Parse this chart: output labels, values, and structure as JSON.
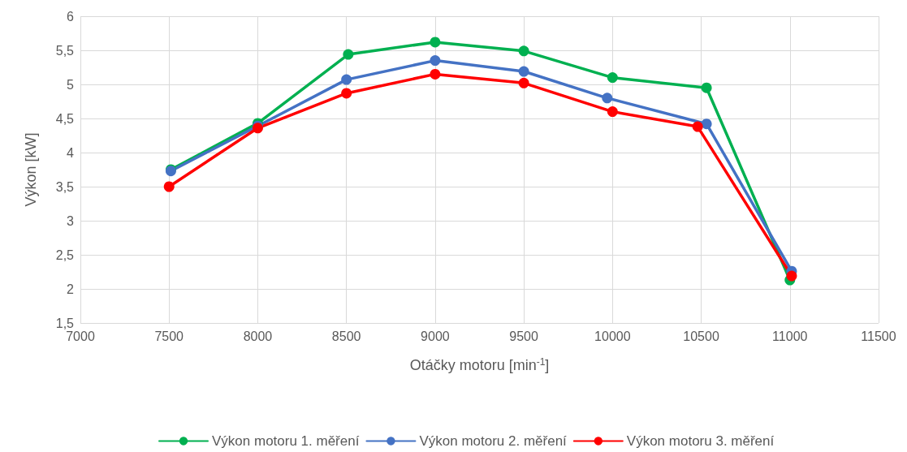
{
  "chart_data": {
    "type": "line",
    "xlabel": "Otáčky motoru [min$^{-1}$]",
    "ylabel": "Výkon [kW]",
    "xlim": [
      7000,
      11500
    ],
    "xticks": [
      7000,
      7500,
      8000,
      8500,
      9000,
      9500,
      10000,
      10500,
      11000,
      11500
    ],
    "ylim": [
      1.5,
      6
    ],
    "yticks": [
      {
        "value": 1.5,
        "label": "1,5"
      },
      2,
      {
        "value": 2.5,
        "label": "2,5"
      },
      3,
      {
        "value": 3.5,
        "label": "3,5"
      },
      4,
      {
        "value": 4.5,
        "label": "4,5"
      },
      5,
      {
        "value": 5.5,
        "label": "5,5"
      },
      6
    ],
    "grid": true,
    "legend": "bottom",
    "marker": "circle",
    "line_style": "solid",
    "series": [
      {
        "name": "Výkon motoru 1. měření",
        "color": "#00b050",
        "x": [
          7510,
          8000,
          8510,
          9000,
          9500,
          10000,
          10530,
          11000
        ],
        "values": [
          3.75,
          4.43,
          5.44,
          5.62,
          5.49,
          5.1,
          4.95,
          2.13
        ]
      },
      {
        "name": "Výkon motoru 2. měření",
        "color": "#4472c4",
        "x": [
          7510,
          8000,
          8500,
          9000,
          9500,
          9970,
          10530,
          11010
        ],
        "values": [
          3.73,
          4.39,
          5.07,
          5.35,
          5.19,
          4.8,
          4.42,
          2.26
        ]
      },
      {
        "name": "Výkon motoru 3. měření",
        "color": "#ff0000",
        "x": [
          7500,
          8000,
          8500,
          9000,
          9500,
          10000,
          10480,
          11010
        ],
        "values": [
          3.5,
          4.36,
          4.87,
          5.15,
          5.02,
          4.6,
          4.38,
          2.19
        ]
      }
    ]
  }
}
